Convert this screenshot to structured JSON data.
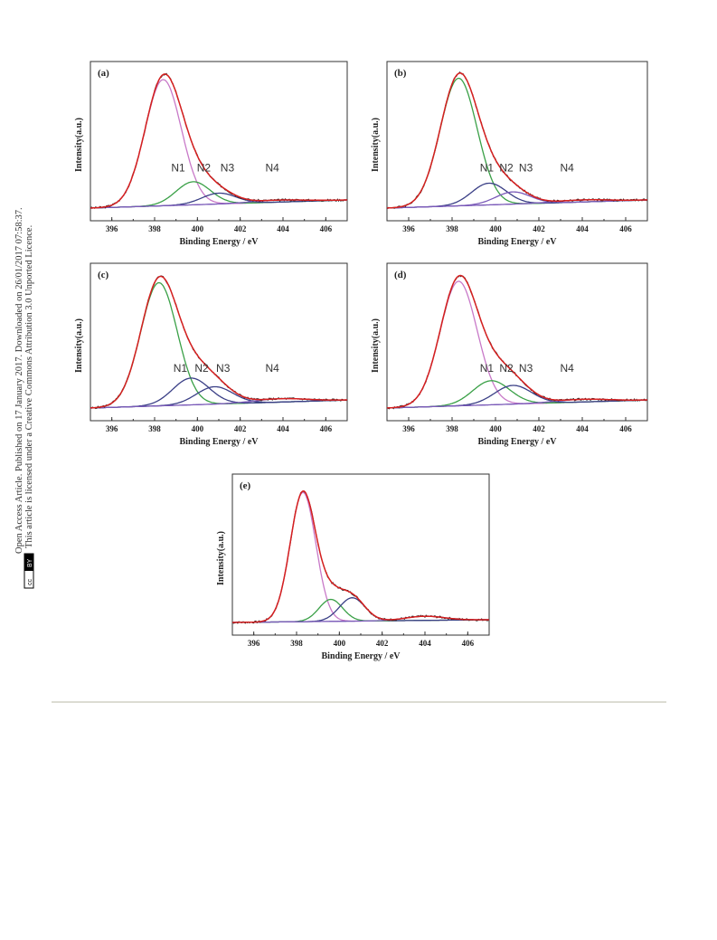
{
  "side_note": {
    "line1": "Open Access Article. Published on 17 January 2017. Downloaded on 26/01/2017 07:58:37.",
    "line2": "This article is licensed under a Creative Commons Attribution 3.0 Unported Licence.",
    "badge_cc": "cc",
    "badge_by": "BY"
  },
  "colors": {
    "envelope": "#d62020",
    "raw": "#2a2a2a",
    "purple": "#c879c8",
    "green": "#3aa047",
    "navy": "#3a3f86",
    "baseline": "#7a5ab8"
  },
  "chart_data": [
    {
      "type": "line",
      "panel": "(a)",
      "xlabel": "Binding Energy / eV",
      "ylabel": "Intensity(a.u.)",
      "xlim": [
        395,
        407
      ],
      "xticks": [
        396,
        398,
        400,
        402,
        404,
        406
      ],
      "ylim": [
        0,
        100
      ],
      "peak_labels": [
        {
          "text": "N1",
          "x": 399.1,
          "y": 27
        },
        {
          "text": "N2",
          "x": 400.3,
          "y": 27
        },
        {
          "text": "N3",
          "x": 401.4,
          "y": 27
        },
        {
          "text": "N4",
          "x": 403.5,
          "y": 27
        }
      ],
      "baseline": [
        0,
        6
      ],
      "peaks": [
        {
          "center": 398.4,
          "height": 93,
          "width": 0.85,
          "color": "purple"
        },
        {
          "center": 399.8,
          "height": 17,
          "width": 0.8,
          "color": "green"
        },
        {
          "center": 401.0,
          "height": 8,
          "width": 0.8,
          "color": "navy"
        },
        {
          "center": 403.8,
          "height": 1.5,
          "width": 1.2,
          "color": "baseline"
        }
      ]
    },
    {
      "type": "line",
      "panel": "(b)",
      "xlabel": "Binding Energy / eV",
      "ylabel": "Intensity(a.u.)",
      "xlim": [
        395,
        407
      ],
      "xticks": [
        396,
        398,
        400,
        402,
        404,
        406
      ],
      "ylim": [
        0,
        100
      ],
      "peak_labels": [
        {
          "text": "N1",
          "x": 399.6,
          "y": 27
        },
        {
          "text": "N2",
          "x": 400.5,
          "y": 27
        },
        {
          "text": "N3",
          "x": 401.4,
          "y": 27
        },
        {
          "text": "N4",
          "x": 403.3,
          "y": 27
        }
      ],
      "baseline": [
        0,
        6
      ],
      "peaks": [
        {
          "center": 398.3,
          "height": 94,
          "width": 0.85,
          "color": "green"
        },
        {
          "center": 399.7,
          "height": 16,
          "width": 0.8,
          "color": "navy"
        },
        {
          "center": 400.8,
          "height": 9,
          "width": 0.8,
          "color": "baseline"
        },
        {
          "center": 404.0,
          "height": 1.5,
          "width": 1.2,
          "color": "baseline"
        }
      ]
    },
    {
      "type": "line",
      "panel": "(c)",
      "xlabel": "Binding Energy / eV",
      "ylabel": "Intensity(a.u.)",
      "xlim": [
        395,
        407
      ],
      "xticks": [
        396,
        398,
        400,
        402,
        404,
        406
      ],
      "ylim": [
        0,
        100
      ],
      "peak_labels": [
        {
          "text": "N1",
          "x": 399.2,
          "y": 27
        },
        {
          "text": "N2",
          "x": 400.2,
          "y": 27
        },
        {
          "text": "N3",
          "x": 401.2,
          "y": 27
        },
        {
          "text": "N4",
          "x": 403.5,
          "y": 27
        }
      ],
      "baseline": [
        0,
        6
      ],
      "peaks": [
        {
          "center": 398.2,
          "height": 92,
          "width": 0.85,
          "color": "green"
        },
        {
          "center": 399.7,
          "height": 20,
          "width": 0.85,
          "color": "navy"
        },
        {
          "center": 400.8,
          "height": 13,
          "width": 0.85,
          "color": "navy"
        },
        {
          "center": 403.9,
          "height": 2.5,
          "width": 1.2,
          "color": "baseline"
        }
      ]
    },
    {
      "type": "line",
      "panel": "(d)",
      "xlabel": "Binding Energy / eV",
      "ylabel": "Intensity(a.u.)",
      "xlim": [
        395,
        407
      ],
      "xticks": [
        396,
        398,
        400,
        402,
        404,
        406
      ],
      "ylim": [
        0,
        100
      ],
      "peak_labels": [
        {
          "text": "N1",
          "x": 399.6,
          "y": 27
        },
        {
          "text": "N2",
          "x": 400.5,
          "y": 27
        },
        {
          "text": "N3",
          "x": 401.4,
          "y": 27
        },
        {
          "text": "N4",
          "x": 403.3,
          "y": 27
        }
      ],
      "baseline": [
        0,
        6
      ],
      "peaks": [
        {
          "center": 398.3,
          "height": 93,
          "width": 0.85,
          "color": "purple"
        },
        {
          "center": 399.8,
          "height": 18,
          "width": 0.85,
          "color": "green"
        },
        {
          "center": 400.8,
          "height": 14,
          "width": 0.85,
          "color": "navy"
        },
        {
          "center": 404.0,
          "height": 2,
          "width": 1.2,
          "color": "baseline"
        }
      ]
    },
    {
      "type": "line",
      "panel": "(e)",
      "xlabel": "Binding Energy / eV",
      "ylabel": "Intensity(a.u.)",
      "xlim": [
        395,
        407
      ],
      "xticks": [
        396,
        398,
        400,
        402,
        404,
        406
      ],
      "ylim": [
        0,
        100
      ],
      "peak_labels": [],
      "baseline": [
        0,
        2
      ],
      "peaks": [
        {
          "center": 398.3,
          "height": 94,
          "width": 0.6,
          "color": "purple"
        },
        {
          "center": 399.6,
          "height": 16,
          "width": 0.55,
          "color": "green"
        },
        {
          "center": 400.6,
          "height": 17,
          "width": 0.6,
          "color": "navy"
        },
        {
          "center": 404.0,
          "height": 3,
          "width": 0.9,
          "color": "baseline"
        }
      ]
    }
  ]
}
